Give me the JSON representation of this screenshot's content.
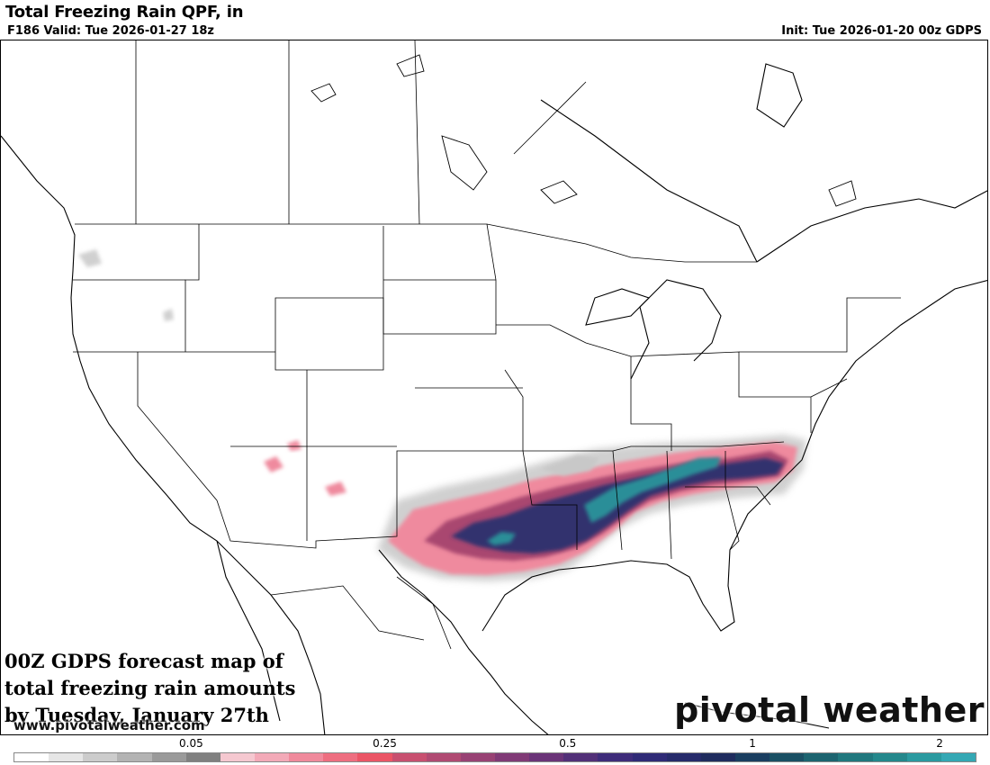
{
  "header": {
    "title": "Total Freezing Rain QPF, in",
    "valid": "F186 Valid: Tue 2026-01-27 18z",
    "init": "Init: Tue 2026-01-20 00z GDPS"
  },
  "caption": {
    "lines": [
      "00Z GDPS forecast map of",
      "total freezing rain amounts",
      "by Tuesday, January 27th"
    ]
  },
  "watermark": {
    "url": "www.pivotalweather.com",
    "brand": "pivotal weather"
  },
  "legend": {
    "colors": [
      "#ffffff",
      "#e6e6e6",
      "#cccccc",
      "#b3b3b3",
      "#9a9a9a",
      "#808080",
      "#f5c8d0",
      "#f3aab8",
      "#f08a9c",
      "#ee6e80",
      "#eb5566",
      "#c85070",
      "#b04a72",
      "#984274",
      "#803a76",
      "#6a3478",
      "#523078",
      "#3e2c7a",
      "#2f2a76",
      "#262a6a",
      "#1f2c5e",
      "#1a3e60",
      "#1a5064",
      "#1c6470",
      "#20787e",
      "#24888c",
      "#2a9aa0",
      "#34a8b4"
    ],
    "ticks": [
      {
        "label": "0.05",
        "pos": 0.1845
      },
      {
        "label": "0.25",
        "pos": 0.3855
      },
      {
        "label": "0.5",
        "pos": 0.5755
      },
      {
        "label": "1",
        "pos": 0.7674
      },
      {
        "label": "2",
        "pos": 0.9617
      }
    ]
  }
}
